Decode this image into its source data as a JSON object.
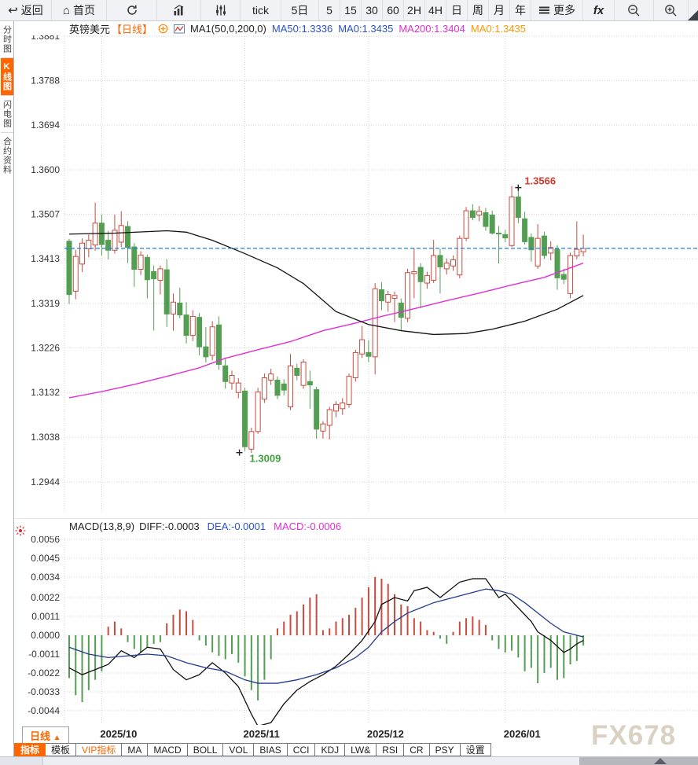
{
  "toolbar": {
    "items": [
      {
        "name": "back-button",
        "icon": "back-icon",
        "label": "返回"
      },
      {
        "name": "home-button",
        "icon": "home-icon",
        "label": "首页"
      },
      {
        "name": "refresh-button",
        "icon": "refresh-icon",
        "label": ""
      },
      {
        "name": "bar-chart-button",
        "icon": "bar-chart-icon",
        "label": ""
      },
      {
        "name": "equalizer-button",
        "icon": "equalizer-icon",
        "label": ""
      },
      {
        "name": "tick-tab",
        "label": "tick"
      },
      {
        "name": "period-5d",
        "label": "5日"
      },
      {
        "name": "period-5",
        "label": "5"
      },
      {
        "name": "period-15",
        "label": "15"
      },
      {
        "name": "period-30",
        "label": "30"
      },
      {
        "name": "period-60",
        "label": "60"
      },
      {
        "name": "period-2h",
        "label": "2H"
      },
      {
        "name": "period-4h",
        "label": "4H"
      },
      {
        "name": "period-day",
        "label": "日"
      },
      {
        "name": "period-week",
        "label": "周"
      },
      {
        "name": "period-month",
        "label": "月"
      },
      {
        "name": "period-year",
        "label": "年"
      },
      {
        "name": "more-button",
        "icon": "menu-icon",
        "label": "更多"
      },
      {
        "name": "fx-button",
        "label": "fx",
        "style": "fx"
      },
      {
        "name": "zoom-out-button",
        "icon": "zoom-out-icon",
        "label": ""
      },
      {
        "name": "zoom-in-button",
        "icon": "zoom-in-icon",
        "label": ""
      }
    ]
  },
  "sidebar": {
    "tabs": [
      {
        "name": "tab-time-chart",
        "label": "分时图",
        "active": false
      },
      {
        "name": "tab-kline-chart",
        "label": "K线图",
        "active": true
      },
      {
        "name": "tab-lightning-chart",
        "label": "闪电图",
        "active": false
      },
      {
        "name": "tab-contract-info",
        "label": "合约资料",
        "active": false
      }
    ]
  },
  "chart_header": {
    "symbol": "英镑美元",
    "period": "【日线】",
    "ma_group": "MA1(50,0,200,0)",
    "ma50": "MA50:1.3336",
    "ma0_blue": "MA0:1.3435",
    "ma200": "MA200:1.3404",
    "ma0_orange": "MA0:1.3435"
  },
  "macd_header": {
    "name": "MACD(13,8,9)",
    "diff": "DIFF:-0.0003",
    "dea": "DEA:-0.0001",
    "macd": "MACD:-0.0006"
  },
  "period_selector": {
    "label": "日线",
    "arrow": "▲"
  },
  "bottom_tabs": [
    {
      "name": "tab-indicator",
      "label": "指标",
      "style": "active"
    },
    {
      "name": "tab-template",
      "label": "模板"
    },
    {
      "name": "tab-vip-indicator",
      "label": "VIP指标",
      "style": "vip"
    },
    {
      "name": "tab-ma",
      "label": "MA"
    },
    {
      "name": "tab-macd",
      "label": "MACD"
    },
    {
      "name": "tab-boll",
      "label": "BOLL"
    },
    {
      "name": "tab-vol",
      "label": "VOL"
    },
    {
      "name": "tab-bias",
      "label": "BIAS"
    },
    {
      "name": "tab-cci",
      "label": "CCI"
    },
    {
      "name": "tab-kdj",
      "label": "KDJ"
    },
    {
      "name": "tab-lw",
      "label": "LW&"
    },
    {
      "name": "tab-rsi",
      "label": "RSI"
    },
    {
      "name": "tab-cr",
      "label": "CR"
    },
    {
      "name": "tab-psy",
      "label": "PSY"
    },
    {
      "name": "tab-settings",
      "label": "设置"
    }
  ],
  "watermark": "FX678",
  "colors": {
    "up": "#c84b3f",
    "down": "#539e53",
    "ma50": "#111111",
    "ma200": "#e12fd2",
    "last_price_line": "#1d7ee0",
    "accent": "#ff6600",
    "grid": "#d2d2d2",
    "annotation_high": "#d03a2f",
    "annotation_low": "#3fa03f",
    "dea_line": "#223a8c"
  },
  "chart_data": [
    {
      "type": "candlestick",
      "title": "英镑美元 日线 (GBP/USD daily)",
      "legend": [
        "MA50 (black)",
        "MA200 (magenta)"
      ],
      "y_ticks": [
        "1.3881",
        "1.3788",
        "1.3694",
        "1.3600",
        "1.3507",
        "1.3413",
        "1.3319",
        "1.3226",
        "1.3132",
        "1.3038",
        "1.2944"
      ],
      "ylim": [
        1.2944,
        1.3881
      ],
      "x_months": [
        {
          "label": "2025/10",
          "index": 5
        },
        {
          "label": "2025/11",
          "index": 27
        },
        {
          "label": "2025/12",
          "index": 46
        },
        {
          "label": "2026/01",
          "index": 67
        }
      ],
      "last_price": 1.3435,
      "annotations": {
        "high": {
          "label": "1.3566",
          "price": 1.3566,
          "index": 69
        },
        "low": {
          "label": "1.3009",
          "price": 1.3009,
          "index": 27
        }
      },
      "candles": [
        [
          1.345,
          1.3455,
          1.3318,
          1.3338
        ],
        [
          1.3345,
          1.3432,
          1.3328,
          1.3418
        ],
        [
          1.3402,
          1.3456,
          1.3385,
          1.3446
        ],
        [
          1.3434,
          1.3464,
          1.3416,
          1.3452
        ],
        [
          1.3442,
          1.3531,
          1.343,
          1.3488
        ],
        [
          1.3488,
          1.3506,
          1.342,
          1.3443
        ],
        [
          1.3452,
          1.3472,
          1.3412,
          1.3431
        ],
        [
          1.3431,
          1.3506,
          1.3424,
          1.3473
        ],
        [
          1.3448,
          1.3513,
          1.3438,
          1.3483
        ],
        [
          1.3481,
          1.3492,
          1.3404,
          1.3437
        ],
        [
          1.3438,
          1.3446,
          1.3354,
          1.3391
        ],
        [
          1.3391,
          1.3429,
          1.3379,
          1.3421
        ],
        [
          1.3416,
          1.3422,
          1.333,
          1.3369
        ],
        [
          1.3386,
          1.3399,
          1.3262,
          1.3371
        ],
        [
          1.3368,
          1.3399,
          1.3338,
          1.3392
        ],
        [
          1.339,
          1.3412,
          1.327,
          1.3297
        ],
        [
          1.3297,
          1.334,
          1.3262,
          1.3322
        ],
        [
          1.332,
          1.3352,
          1.3288,
          1.3295
        ],
        [
          1.3295,
          1.3322,
          1.3235,
          1.3252
        ],
        [
          1.3252,
          1.3305,
          1.324,
          1.3292
        ],
        [
          1.329,
          1.3299,
          1.321,
          1.3228
        ],
        [
          1.3228,
          1.327,
          1.3195,
          1.3207
        ],
        [
          1.321,
          1.3282,
          1.32,
          1.327
        ],
        [
          1.3274,
          1.3292,
          1.318,
          1.3191
        ],
        [
          1.3188,
          1.3205,
          1.314,
          1.3155
        ],
        [
          1.3152,
          1.3178,
          1.3138,
          1.3168
        ],
        [
          1.3132,
          1.3162,
          1.312,
          1.3152
        ],
        [
          1.3135,
          1.3142,
          1.3009,
          1.3018
        ],
        [
          1.3013,
          1.3058,
          1.3005,
          1.305
        ],
        [
          1.305,
          1.3142,
          1.3045,
          1.3133
        ],
        [
          1.3118,
          1.3172,
          1.311,
          1.3163
        ],
        [
          1.3158,
          1.3182,
          1.3148,
          1.3171
        ],
        [
          1.3158,
          1.3166,
          1.3118,
          1.3126
        ],
        [
          1.315,
          1.316,
          1.3126,
          1.3137
        ],
        [
          1.3102,
          1.3213,
          1.3095,
          1.3188
        ],
        [
          1.3183,
          1.3192,
          1.3158,
          1.3168
        ],
        [
          1.3147,
          1.3202,
          1.314,
          1.3196
        ],
        [
          1.3155,
          1.3178,
          1.3098,
          1.3148
        ],
        [
          1.3138,
          1.3144,
          1.3035,
          1.3055
        ],
        [
          1.3051,
          1.3072,
          1.3035,
          1.3066
        ],
        [
          1.3063,
          1.3102,
          1.3033,
          1.3096
        ],
        [
          1.3093,
          1.3114,
          1.308,
          1.3107
        ],
        [
          1.3098,
          1.312,
          1.3085,
          1.311
        ],
        [
          1.3107,
          1.3172,
          1.31,
          1.3166
        ],
        [
          1.3163,
          1.3222,
          1.3155,
          1.3216
        ],
        [
          1.3213,
          1.3272,
          1.3205,
          1.3243
        ],
        [
          1.3216,
          1.3242,
          1.3196,
          1.3208
        ],
        [
          1.3207,
          1.3362,
          1.317,
          1.335
        ],
        [
          1.3348,
          1.3364,
          1.3305,
          1.3325
        ],
        [
          1.3322,
          1.3346,
          1.3302,
          1.3338
        ],
        [
          1.333,
          1.3344,
          1.328,
          1.3336
        ],
        [
          1.332,
          1.333,
          1.3262,
          1.329
        ],
        [
          1.3288,
          1.3392,
          1.328,
          1.3384
        ],
        [
          1.3382,
          1.3436,
          1.333,
          1.3386
        ],
        [
          1.3395,
          1.3404,
          1.3309,
          1.3365
        ],
        [
          1.3362,
          1.3386,
          1.335,
          1.3378
        ],
        [
          1.3368,
          1.3453,
          1.3362,
          1.342
        ],
        [
          1.342,
          1.3434,
          1.334,
          1.3396
        ],
        [
          1.3392,
          1.3414,
          1.338,
          1.3404
        ],
        [
          1.3398,
          1.342,
          1.3388,
          1.3411
        ],
        [
          1.3379,
          1.3462,
          1.3372,
          1.3456
        ],
        [
          1.3456,
          1.3522,
          1.345,
          1.3514
        ],
        [
          1.3514,
          1.3528,
          1.3494,
          1.35
        ],
        [
          1.3505,
          1.3524,
          1.3492,
          1.3513
        ],
        [
          1.351,
          1.352,
          1.3472,
          1.3481
        ],
        [
          1.3505,
          1.3514,
          1.3464,
          1.3467
        ],
        [
          1.3467,
          1.3482,
          1.3403,
          1.3466
        ],
        [
          1.3464,
          1.3474,
          1.3448,
          1.3457
        ],
        [
          1.3441,
          1.3566,
          1.3438,
          1.3543
        ],
        [
          1.3543,
          1.3558,
          1.3488,
          1.35
        ],
        [
          1.3497,
          1.3512,
          1.3443,
          1.3449
        ],
        [
          1.3458,
          1.3466,
          1.3407,
          1.3432
        ],
        [
          1.3398,
          1.3486,
          1.3392,
          1.3456
        ],
        [
          1.3461,
          1.347,
          1.3413,
          1.342
        ],
        [
          1.3425,
          1.345,
          1.341,
          1.3437
        ],
        [
          1.3433,
          1.3442,
          1.3348,
          1.3373
        ],
        [
          1.338,
          1.3392,
          1.336,
          1.337
        ],
        [
          1.334,
          1.3426,
          1.333,
          1.342
        ],
        [
          1.3419,
          1.3492,
          1.3412,
          1.3433
        ],
        [
          1.3428,
          1.3464,
          1.3418,
          1.3435
        ]
      ],
      "ma50_points": [
        [
          0,
          1.3465
        ],
        [
          7,
          1.3467
        ],
        [
          15,
          1.3472
        ],
        [
          18,
          1.3469
        ],
        [
          22,
          1.3452
        ],
        [
          27,
          1.3424
        ],
        [
          32,
          1.3394
        ],
        [
          36,
          1.3361
        ],
        [
          41,
          1.3302
        ],
        [
          46,
          1.3275
        ],
        [
          51,
          1.3262
        ],
        [
          56,
          1.3254
        ],
        [
          61,
          1.3256
        ],
        [
          65,
          1.3265
        ],
        [
          70,
          1.3282
        ],
        [
          75,
          1.3307
        ],
        [
          79,
          1.3336
        ]
      ],
      "ma200_points": [
        [
          0,
          1.3121
        ],
        [
          5,
          1.3134
        ],
        [
          10,
          1.3149
        ],
        [
          15,
          1.3166
        ],
        [
          20,
          1.3184
        ],
        [
          24,
          1.3204
        ],
        [
          29,
          1.3222
        ],
        [
          34,
          1.3239
        ],
        [
          39,
          1.3262
        ],
        [
          44,
          1.3278
        ],
        [
          48,
          1.3292
        ],
        [
          53,
          1.3308
        ],
        [
          58,
          1.3325
        ],
        [
          63,
          1.3341
        ],
        [
          68,
          1.3358
        ],
        [
          73,
          1.3374
        ],
        [
          77,
          1.3394
        ],
        [
          79,
          1.3404
        ]
      ]
    },
    {
      "type": "macd",
      "title": "MACD(13,8,9)",
      "y_ticks": [
        "0.0056",
        "0.0045",
        "0.0034",
        "0.0022",
        "0.0011",
        "0.0000",
        "-0.0011",
        "-0.0022",
        "-0.0033",
        "-0.0044"
      ],
      "hist": [
        -0.0025,
        -0.0035,
        -0.0039,
        -0.0032,
        -0.0026,
        -0.0021,
        0.0005,
        0.0008,
        0.0004,
        -0.0004,
        -0.0008,
        -0.001,
        -0.0007,
        -0.0005,
        -0.0004,
        0.0007,
        0.0012,
        0.0015,
        0.0014,
        0.0009,
        -0.0003,
        -0.0006,
        -0.001,
        -0.0012,
        -0.0014,
        -0.0011,
        -0.0016,
        -0.0024,
        -0.0032,
        -0.0038,
        -0.0026,
        -0.0014,
        0.0004,
        0.0008,
        0.0012,
        0.0014,
        0.0018,
        0.0022,
        0.0024,
        0.0003,
        0.0004,
        0.0008,
        0.001,
        0.0012,
        0.0016,
        0.0022,
        0.0028,
        0.0034,
        0.0033,
        0.003,
        0.0024,
        0.0018,
        0.0017,
        0.001,
        0.0008,
        0.0003,
        0.0002,
        -0.0002,
        -0.0005,
        0.0002,
        0.0008,
        0.001,
        0.0011,
        0.0009,
        0.0006,
        -0.0003,
        -0.0008,
        -0.001,
        -0.0009,
        -0.0013,
        -0.0021,
        -0.0019,
        -0.0028,
        -0.0022,
        -0.0019,
        -0.0026,
        -0.0025,
        -0.0017,
        -0.0015,
        -0.0006
      ],
      "diff_points": [
        [
          0,
          -0.0019
        ],
        [
          2,
          -0.0023
        ],
        [
          4,
          -0.002
        ],
        [
          6,
          -0.0017
        ],
        [
          8,
          -0.0009
        ],
        [
          10,
          -0.0013
        ],
        [
          12,
          -0.0007
        ],
        [
          14,
          -0.0008
        ],
        [
          16,
          -0.002
        ],
        [
          18,
          -0.0026
        ],
        [
          20,
          -0.0023
        ],
        [
          22,
          -0.0016
        ],
        [
          24,
          -0.0022
        ],
        [
          26,
          -0.003
        ],
        [
          28,
          -0.0046
        ],
        [
          29,
          -0.0053
        ],
        [
          31,
          -0.0051
        ],
        [
          33,
          -0.004
        ],
        [
          35,
          -0.0032
        ],
        [
          37,
          -0.0027
        ],
        [
          39,
          -0.0023
        ],
        [
          41,
          -0.0018
        ],
        [
          43,
          -0.0011
        ],
        [
          45,
          -0.0003
        ],
        [
          47,
          0.0008
        ],
        [
          48,
          0.0018
        ],
        [
          50,
          0.0022
        ],
        [
          52,
          0.002
        ],
        [
          53,
          0.0026
        ],
        [
          55,
          0.0028
        ],
        [
          57,
          0.0022
        ],
        [
          58,
          0.0025
        ],
        [
          60,
          0.0031
        ],
        [
          62,
          0.0033
        ],
        [
          64,
          0.0033
        ],
        [
          66,
          0.0022
        ],
        [
          67,
          0.0024
        ],
        [
          69,
          0.0016
        ],
        [
          71,
          0.0008
        ],
        [
          72,
          0.0002
        ],
        [
          74,
          -0.0003
        ],
        [
          76,
          -0.001
        ],
        [
          77,
          -0.0008
        ],
        [
          78,
          -0.0005
        ],
        [
          79,
          -0.0003
        ]
      ],
      "dea_points": [
        [
          0,
          -0.0007
        ],
        [
          3,
          -0.0011
        ],
        [
          6,
          -0.0013
        ],
        [
          9,
          -0.0012
        ],
        [
          12,
          -0.0011
        ],
        [
          15,
          -0.0012
        ],
        [
          18,
          -0.0016
        ],
        [
          21,
          -0.0019
        ],
        [
          24,
          -0.0021
        ],
        [
          27,
          -0.0026
        ],
        [
          29,
          -0.0028
        ],
        [
          32,
          -0.0028
        ],
        [
          35,
          -0.0026
        ],
        [
          38,
          -0.0023
        ],
        [
          41,
          -0.0019
        ],
        [
          44,
          -0.0013
        ],
        [
          46,
          -0.0007
        ],
        [
          48,
          0.0002
        ],
        [
          50,
          0.0008
        ],
        [
          52,
          0.0013
        ],
        [
          54,
          0.0016
        ],
        [
          56,
          0.0019
        ],
        [
          58,
          0.0021
        ],
        [
          60,
          0.0023
        ],
        [
          62,
          0.0025
        ],
        [
          64,
          0.0027
        ],
        [
          66,
          0.0026
        ],
        [
          68,
          0.0024
        ],
        [
          70,
          0.0019
        ],
        [
          72,
          0.0013
        ],
        [
          74,
          0.0007
        ],
        [
          76,
          0.0002
        ],
        [
          78,
          0.0
        ],
        [
          79,
          -0.0001
        ]
      ]
    }
  ]
}
